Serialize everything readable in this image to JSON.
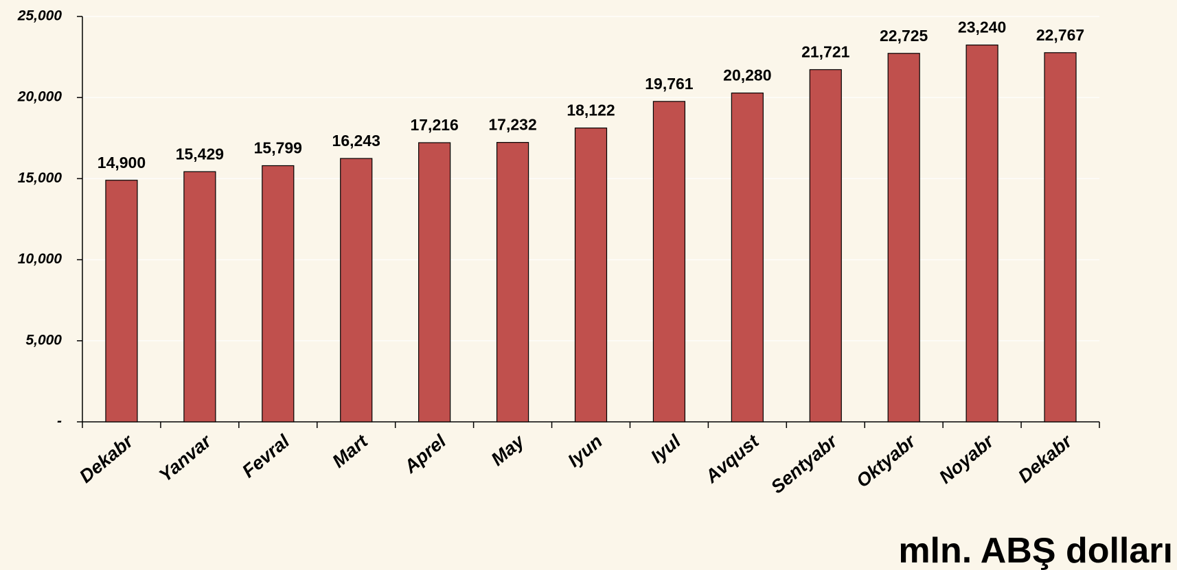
{
  "chart_data": {
    "type": "bar",
    "categories": [
      "Dekabr",
      "Yanvar",
      "Fevral",
      "Mart",
      "Aprel",
      "May",
      "Iyun",
      "Iyul",
      "Avqust",
      "Sentyabr",
      "Oktyabr",
      "Noyabr",
      "Dekabr"
    ],
    "values": [
      14900,
      15429,
      15799,
      16243,
      17216,
      17232,
      18122,
      19761,
      20280,
      21721,
      22725,
      23240,
      22767
    ],
    "value_labels": [
      "14,900",
      "15,429",
      "15,799",
      "16,243",
      "17,216",
      "17,232",
      "18,122",
      "19,761",
      "20,280",
      "21,721",
      "22,725",
      "23,240",
      "22,767"
    ],
    "color": "#c0504d",
    "ylim": [
      0,
      25000
    ],
    "yticks": [
      {
        "value": 0,
        "label": "-"
      },
      {
        "value": 5000,
        "label": "5,000"
      },
      {
        "value": 10000,
        "label": "10,000"
      },
      {
        "value": 15000,
        "label": "15,000"
      },
      {
        "value": 20000,
        "label": "20,000"
      },
      {
        "value": 25000,
        "label": "25,000"
      }
    ],
    "grid": true,
    "annotation": "mln. ABŞ dolları"
  }
}
